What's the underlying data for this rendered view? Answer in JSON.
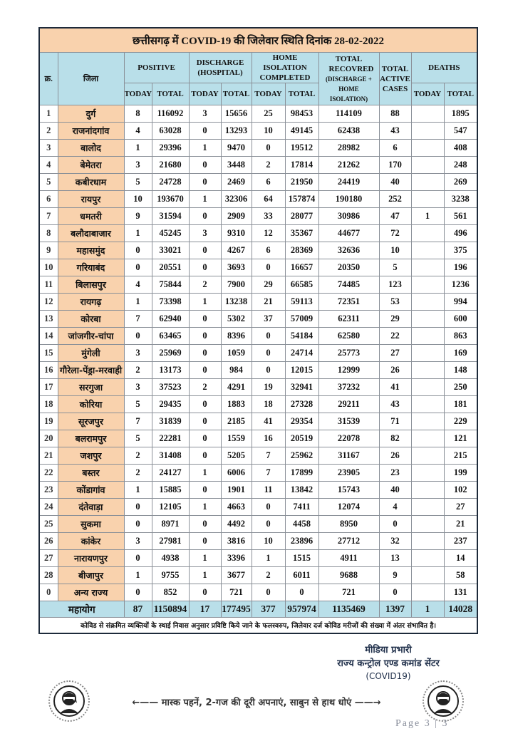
{
  "title": "छत्तीसगढ़ में COVID-19 की जिलेवार स्थिति दिनांक 28-02-2022",
  "headers": {
    "sno": "क्र.",
    "district": "जिला",
    "positive": "POSITIVE",
    "discharge": "DISCHARGE (HOSPITAL)",
    "home_isolation": "HOME ISOLATION COMPLETED",
    "total_recovered": "TOTAL RECOVRED",
    "total_recovered_sub": "(DISCHARGE + HOME ISOLATION)",
    "active": "TOTAL ACTIVE CASES",
    "deaths": "DEATHS",
    "today": "TODAY",
    "total": "TOTAL"
  },
  "rows": [
    {
      "sno": "1",
      "district": "दुर्ग",
      "pos_today": "8",
      "pos_total": "116092",
      "dis_today": "3",
      "dis_total": "15656",
      "hi_today": "25",
      "hi_total": "98453",
      "recovered": "114109",
      "active": "88",
      "death_today": "",
      "death_total": "1895"
    },
    {
      "sno": "2",
      "district": "राजनांदगांव",
      "pos_today": "4",
      "pos_total": "63028",
      "dis_today": "0",
      "dis_total": "13293",
      "hi_today": "10",
      "hi_total": "49145",
      "recovered": "62438",
      "active": "43",
      "death_today": "",
      "death_total": "547"
    },
    {
      "sno": "3",
      "district": "बालोद",
      "pos_today": "1",
      "pos_total": "29396",
      "dis_today": "1",
      "dis_total": "9470",
      "hi_today": "0",
      "hi_total": "19512",
      "recovered": "28982",
      "active": "6",
      "death_today": "",
      "death_total": "408"
    },
    {
      "sno": "4",
      "district": "बेमेतरा",
      "pos_today": "3",
      "pos_total": "21680",
      "dis_today": "0",
      "dis_total": "3448",
      "hi_today": "2",
      "hi_total": "17814",
      "recovered": "21262",
      "active": "170",
      "death_today": "",
      "death_total": "248"
    },
    {
      "sno": "5",
      "district": "कबीरधाम",
      "pos_today": "5",
      "pos_total": "24728",
      "dis_today": "0",
      "dis_total": "2469",
      "hi_today": "6",
      "hi_total": "21950",
      "recovered": "24419",
      "active": "40",
      "death_today": "",
      "death_total": "269"
    },
    {
      "sno": "6",
      "district": "रायपुर",
      "pos_today": "10",
      "pos_total": "193670",
      "dis_today": "1",
      "dis_total": "32306",
      "hi_today": "64",
      "hi_total": "157874",
      "recovered": "190180",
      "active": "252",
      "death_today": "",
      "death_total": "3238"
    },
    {
      "sno": "7",
      "district": "धमतरी",
      "pos_today": "9",
      "pos_total": "31594",
      "dis_today": "0",
      "dis_total": "2909",
      "hi_today": "33",
      "hi_total": "28077",
      "recovered": "30986",
      "active": "47",
      "death_today": "1",
      "death_total": "561"
    },
    {
      "sno": "8",
      "district": "बलौदाबाजार",
      "pos_today": "1",
      "pos_total": "45245",
      "dis_today": "3",
      "dis_total": "9310",
      "hi_today": "12",
      "hi_total": "35367",
      "recovered": "44677",
      "active": "72",
      "death_today": "",
      "death_total": "496"
    },
    {
      "sno": "9",
      "district": "महासमुंद",
      "pos_today": "0",
      "pos_total": "33021",
      "dis_today": "0",
      "dis_total": "4267",
      "hi_today": "6",
      "hi_total": "28369",
      "recovered": "32636",
      "active": "10",
      "death_today": "",
      "death_total": "375"
    },
    {
      "sno": "10",
      "district": "गरियाबंद",
      "pos_today": "0",
      "pos_total": "20551",
      "dis_today": "0",
      "dis_total": "3693",
      "hi_today": "0",
      "hi_total": "16657",
      "recovered": "20350",
      "active": "5",
      "death_today": "",
      "death_total": "196"
    },
    {
      "sno": "11",
      "district": "बिलासपुर",
      "pos_today": "4",
      "pos_total": "75844",
      "dis_today": "2",
      "dis_total": "7900",
      "hi_today": "29",
      "hi_total": "66585",
      "recovered": "74485",
      "active": "123",
      "death_today": "",
      "death_total": "1236"
    },
    {
      "sno": "12",
      "district": "रायगढ़",
      "pos_today": "1",
      "pos_total": "73398",
      "dis_today": "1",
      "dis_total": "13238",
      "hi_today": "21",
      "hi_total": "59113",
      "recovered": "72351",
      "active": "53",
      "death_today": "",
      "death_total": "994"
    },
    {
      "sno": "13",
      "district": "कोरबा",
      "pos_today": "7",
      "pos_total": "62940",
      "dis_today": "0",
      "dis_total": "5302",
      "hi_today": "37",
      "hi_total": "57009",
      "recovered": "62311",
      "active": "29",
      "death_today": "",
      "death_total": "600"
    },
    {
      "sno": "14",
      "district": "जांजगीर-चांपा",
      "pos_today": "0",
      "pos_total": "63465",
      "dis_today": "0",
      "dis_total": "8396",
      "hi_today": "0",
      "hi_total": "54184",
      "recovered": "62580",
      "active": "22",
      "death_today": "",
      "death_total": "863"
    },
    {
      "sno": "15",
      "district": "मुंगेली",
      "pos_today": "3",
      "pos_total": "25969",
      "dis_today": "0",
      "dis_total": "1059",
      "hi_today": "0",
      "hi_total": "24714",
      "recovered": "25773",
      "active": "27",
      "death_today": "",
      "death_total": "169"
    },
    {
      "sno": "16",
      "district": "गौरेला-पेंड्रा-मरवाही",
      "pos_today": "2",
      "pos_total": "13173",
      "dis_today": "0",
      "dis_total": "984",
      "hi_today": "0",
      "hi_total": "12015",
      "recovered": "12999",
      "active": "26",
      "death_today": "",
      "death_total": "148"
    },
    {
      "sno": "17",
      "district": "सरगुजा",
      "pos_today": "3",
      "pos_total": "37523",
      "dis_today": "2",
      "dis_total": "4291",
      "hi_today": "19",
      "hi_total": "32941",
      "recovered": "37232",
      "active": "41",
      "death_today": "",
      "death_total": "250"
    },
    {
      "sno": "18",
      "district": "कोरिया",
      "pos_today": "5",
      "pos_total": "29435",
      "dis_today": "0",
      "dis_total": "1883",
      "hi_today": "18",
      "hi_total": "27328",
      "recovered": "29211",
      "active": "43",
      "death_today": "",
      "death_total": "181"
    },
    {
      "sno": "19",
      "district": "सूरजपुर",
      "pos_today": "7",
      "pos_total": "31839",
      "dis_today": "0",
      "dis_total": "2185",
      "hi_today": "41",
      "hi_total": "29354",
      "recovered": "31539",
      "active": "71",
      "death_today": "",
      "death_total": "229"
    },
    {
      "sno": "20",
      "district": "बलरामपुर",
      "pos_today": "5",
      "pos_total": "22281",
      "dis_today": "0",
      "dis_total": "1559",
      "hi_today": "16",
      "hi_total": "20519",
      "recovered": "22078",
      "active": "82",
      "death_today": "",
      "death_total": "121"
    },
    {
      "sno": "21",
      "district": "जशपुर",
      "pos_today": "2",
      "pos_total": "31408",
      "dis_today": "0",
      "dis_total": "5205",
      "hi_today": "7",
      "hi_total": "25962",
      "recovered": "31167",
      "active": "26",
      "death_today": "",
      "death_total": "215"
    },
    {
      "sno": "22",
      "district": "बस्तर",
      "pos_today": "2",
      "pos_total": "24127",
      "dis_today": "1",
      "dis_total": "6006",
      "hi_today": "7",
      "hi_total": "17899",
      "recovered": "23905",
      "active": "23",
      "death_today": "",
      "death_total": "199"
    },
    {
      "sno": "23",
      "district": "कोंडागांव",
      "pos_today": "1",
      "pos_total": "15885",
      "dis_today": "0",
      "dis_total": "1901",
      "hi_today": "11",
      "hi_total": "13842",
      "recovered": "15743",
      "active": "40",
      "death_today": "",
      "death_total": "102"
    },
    {
      "sno": "24",
      "district": "दंतेवाड़ा",
      "pos_today": "0",
      "pos_total": "12105",
      "dis_today": "1",
      "dis_total": "4663",
      "hi_today": "0",
      "hi_total": "7411",
      "recovered": "12074",
      "active": "4",
      "death_today": "",
      "death_total": "27"
    },
    {
      "sno": "25",
      "district": "सुकमा",
      "pos_today": "0",
      "pos_total": "8971",
      "dis_today": "0",
      "dis_total": "4492",
      "hi_today": "0",
      "hi_total": "4458",
      "recovered": "8950",
      "active": "0",
      "death_today": "",
      "death_total": "21"
    },
    {
      "sno": "26",
      "district": "कांकेर",
      "pos_today": "3",
      "pos_total": "27981",
      "dis_today": "0",
      "dis_total": "3816",
      "hi_today": "10",
      "hi_total": "23896",
      "recovered": "27712",
      "active": "32",
      "death_today": "",
      "death_total": "237"
    },
    {
      "sno": "27",
      "district": "नारायणपुर",
      "pos_today": "0",
      "pos_total": "4938",
      "dis_today": "1",
      "dis_total": "3396",
      "hi_today": "1",
      "hi_total": "1515",
      "recovered": "4911",
      "active": "13",
      "death_today": "",
      "death_total": "14"
    },
    {
      "sno": "28",
      "district": "बीजापुर",
      "pos_today": "1",
      "pos_total": "9755",
      "dis_today": "1",
      "dis_total": "3677",
      "hi_today": "2",
      "hi_total": "6011",
      "recovered": "9688",
      "active": "9",
      "death_today": "",
      "death_total": "58"
    },
    {
      "sno": "0",
      "district": "अन्य राज्य",
      "pos_today": "0",
      "pos_total": "852",
      "dis_today": "0",
      "dis_total": "721",
      "hi_today": "0",
      "hi_total": "0",
      "recovered": "721",
      "active": "0",
      "death_today": "",
      "death_total": "131"
    }
  ],
  "total": {
    "label": "महायोग",
    "pos_today": "87",
    "pos_total": "1150894",
    "dis_today": "17",
    "dis_total": "177495",
    "hi_today": "377",
    "hi_total": "957974",
    "recovered": "1135469",
    "active": "1397",
    "death_today": "1",
    "death_total": "14028"
  },
  "note": "कोविड से संक्रमित व्यक्तियों के स्थाई निवास अनुसार प्रविष्टि किये जाने के फलस्वरुप, जिलेवार दर्ज कोविड मरीजों की संख्या में अंतर संभावित है।",
  "signature": {
    "line1": "मीडिया प्रभारी",
    "line2": "राज्य कन्ट्रोल एण्ड कमांड सेंटर",
    "line3": "(COVID19)"
  },
  "slogan": "←—— मास्क पहनें, 2-गज की दूरी अपनाएं, साबुन से हाथ धोएं ——→",
  "page": "Page 3 | 3",
  "icons": {
    "left": "masked-woman-icon",
    "right": "masked-man-icon"
  },
  "colors": {
    "title_bg": "#f9d2ad",
    "header_bg": "#b9dfe9",
    "district_bg": "#f9d2ad"
  }
}
